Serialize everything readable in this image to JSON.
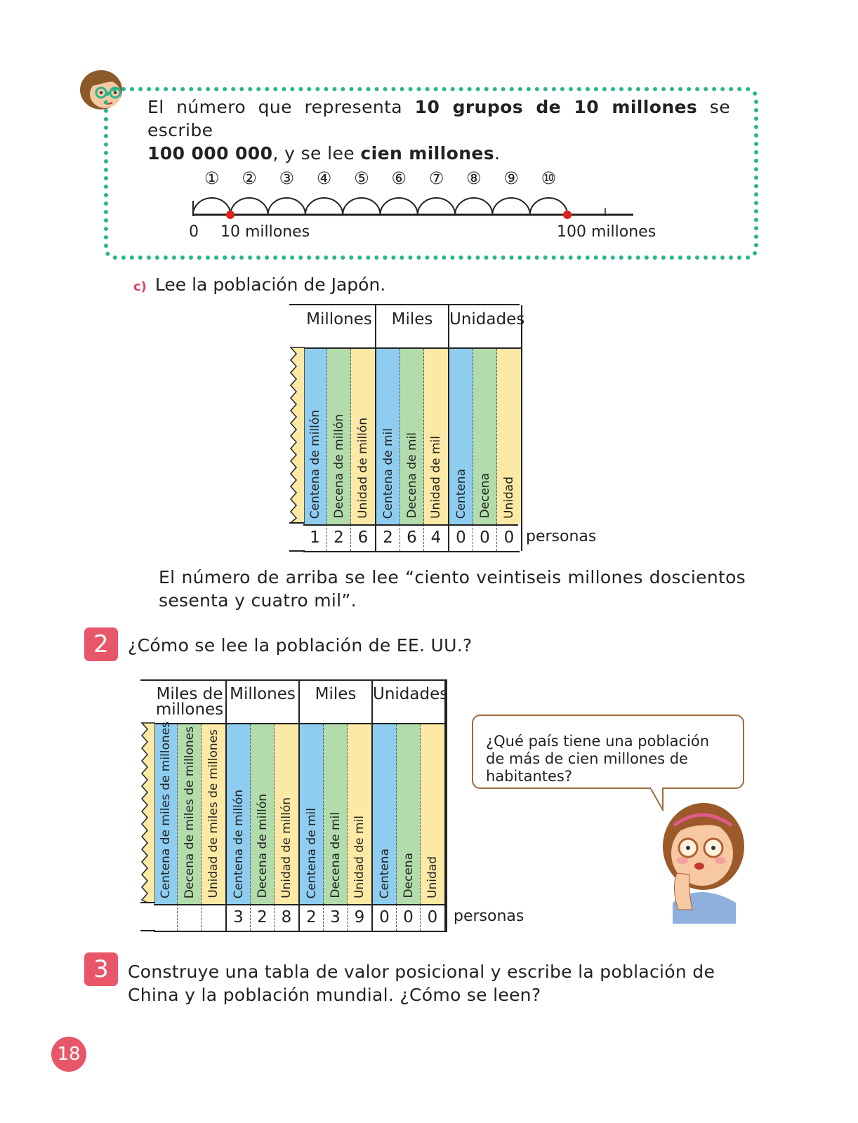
{
  "intro": {
    "t1": "El número que representa ",
    "b1": "10 grupos de 10 millones",
    "t2": " se escribe",
    "b2": "100 000 000",
    "t3": ", y se lee ",
    "b3": "cien millones",
    "t4": "."
  },
  "number_line": {
    "steps": [
      "①",
      "②",
      "③",
      "④",
      "⑤",
      "⑥",
      "⑦",
      "⑧",
      "⑨",
      "⑩"
    ],
    "label_zero": "0",
    "label_ten": "10 millones",
    "label_hundred": "100 millones"
  },
  "task_c": {
    "letter": "c)",
    "text": "Lee la población de Japón."
  },
  "japan_table": {
    "headers": [
      "Millones",
      "Miles",
      "Unidades"
    ],
    "columns": [
      "Centena de millón",
      "Decena de millón",
      "Unidad de millón",
      "Centena de mil",
      "Decena de mil",
      "Unidad de mil",
      "Centena",
      "Decena",
      "Unidad"
    ],
    "digits": [
      "1",
      "2",
      "6",
      "2",
      "6",
      "4",
      "0",
      "0",
      "0"
    ],
    "unit": "personas"
  },
  "reading": "El número de arriba se lee “ciento veintiseis millones doscientos sesenta y cuatro mil”.",
  "q2": {
    "num": "2",
    "text": "¿Cómo se lee la población de EE. UU.?"
  },
  "usa_table": {
    "headers": [
      "Miles de millones",
      "Millones",
      "Miles",
      "Unidades"
    ],
    "columns": [
      "Centena de miles de millones",
      "Decena de miles de millones",
      "Unidad de miles de millones",
      "Centena de millón",
      "Decena de millón",
      "Unidad de millón",
      "Centena de mil",
      "Decena de mil",
      "Unidad de mil",
      "Centena",
      "Decena",
      "Unidad"
    ],
    "digits": [
      "",
      "",
      "",
      "3",
      "2",
      "8",
      "2",
      "3",
      "9",
      "0",
      "0",
      "0"
    ],
    "unit": "personas"
  },
  "bubble": {
    "text": "¿Qué país tiene una población de más de cien millones de habitantes?"
  },
  "q3": {
    "num": "3",
    "text": "Construye una tabla de valor posicional y escribe la población de China y la población mundial. ¿Cómo se leen?"
  },
  "page_number": "18",
  "colors": {
    "accent": "#e8566a",
    "dots": "#2ab58f",
    "blue": "#8fcdf0",
    "green": "#b3dcac",
    "yellow": "#fbe9a5"
  }
}
